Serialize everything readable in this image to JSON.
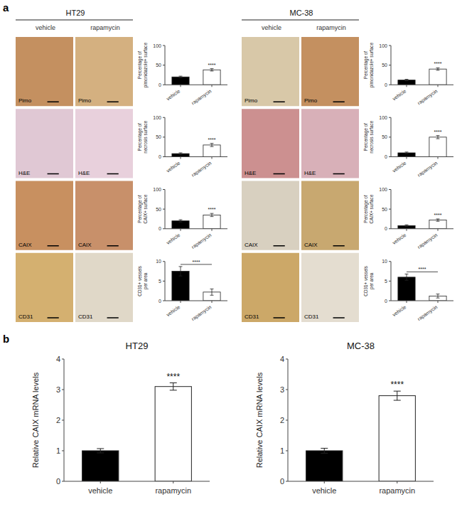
{
  "panel_a": {
    "label": "a",
    "groups": [
      {
        "title": "HT29",
        "conditions": [
          "vehicle",
          "rapamycin"
        ],
        "rows": [
          {
            "label": "Pimo",
            "image_colors": [
              "#c49060",
              "#d4b080"
            ]
          },
          {
            "label": "H&E",
            "image_colors": [
              "#e0c8d4",
              "#e8d0dc"
            ]
          },
          {
            "label": "CAIX",
            "image_colors": [
              "#c89060",
              "#c8906a"
            ]
          },
          {
            "label": "CD31",
            "image_colors": [
              "#d4b070",
              "#e0d8c8"
            ]
          }
        ]
      },
      {
        "title": "MC-38",
        "conditions": [
          "vehicle",
          "rapamycin"
        ],
        "rows": [
          {
            "label": "Pimo",
            "image_colors": [
              "#d8c8a8",
              "#c49060"
            ]
          },
          {
            "label": "H&E",
            "image_colors": [
              "#cc9090",
              "#d8b0b8"
            ]
          },
          {
            "label": "CAIX",
            "image_colors": [
              "#d8d0c0",
              "#c8a870"
            ]
          },
          {
            "label": "CD31",
            "image_colors": [
              "#cca868",
              "#e4ddd0"
            ]
          }
        ]
      }
    ]
  },
  "panel_b": {
    "label": "b"
  },
  "chart_data": [
    {
      "type": "bar",
      "categories": [
        "vehicle",
        "rapamycin"
      ],
      "values": [
        20,
        38
      ],
      "errors": [
        2,
        3
      ],
      "colors": [
        "black",
        "white"
      ],
      "ylabel": "Percentage of\npimonidazole+ surface",
      "ylim": [
        0,
        100
      ],
      "yticks": [
        0,
        50,
        100
      ],
      "annotations": [
        {
          "text": "****",
          "categories": [
            "rapamycin"
          ]
        }
      ]
    },
    {
      "type": "bar",
      "categories": [
        "vehicle",
        "rapamycin"
      ],
      "values": [
        8,
        30
      ],
      "errors": [
        2,
        4
      ],
      "colors": [
        "black",
        "white"
      ],
      "ylabel": "Percentage of\nnecrosis surface",
      "ylim": [
        0,
        100
      ],
      "yticks": [
        0,
        50,
        100
      ],
      "annotations": [
        {
          "text": "****",
          "categories": [
            "rapamycin"
          ]
        }
      ]
    },
    {
      "type": "bar",
      "categories": [
        "vehicle",
        "rapamycin"
      ],
      "values": [
        20,
        35
      ],
      "errors": [
        3,
        4
      ],
      "colors": [
        "black",
        "white"
      ],
      "ylabel": "Percentage of\nCAIX+ surface",
      "ylim": [
        0,
        100
      ],
      "yticks": [
        0,
        50,
        100
      ],
      "annotations": [
        {
          "text": "****",
          "categories": [
            "rapamycin"
          ]
        }
      ]
    },
    {
      "type": "bar",
      "categories": [
        "vehicle",
        "rapamycin"
      ],
      "values": [
        7.5,
        2.2
      ],
      "errors": [
        1.2,
        0.8
      ],
      "colors": [
        "black",
        "white"
      ],
      "ylabel": "CD31+ vessels\nper area",
      "ylim": [
        0,
        10
      ],
      "yticks": [
        0,
        5,
        10
      ],
      "annotations": [
        {
          "text": "****",
          "categories": [
            "vehicle",
            "rapamycin"
          ]
        }
      ]
    },
    {
      "type": "bar",
      "categories": [
        "vehicle",
        "rapamycin"
      ],
      "values": [
        12,
        40
      ],
      "errors": [
        2,
        3
      ],
      "colors": [
        "black",
        "white"
      ],
      "ylabel": "Percentage of\npimonidazole+ surface",
      "ylim": [
        0,
        100
      ],
      "yticks": [
        0,
        50,
        100
      ],
      "annotations": [
        {
          "text": "****",
          "categories": [
            "rapamycin"
          ]
        }
      ]
    },
    {
      "type": "bar",
      "categories": [
        "vehicle",
        "rapamycin"
      ],
      "values": [
        10,
        50
      ],
      "errors": [
        2,
        4
      ],
      "colors": [
        "black",
        "white"
      ],
      "ylabel": "Percentage of\nnecrosis surface",
      "ylim": [
        0,
        100
      ],
      "yticks": [
        0,
        50,
        100
      ],
      "annotations": [
        {
          "text": "****",
          "categories": [
            "rapamycin"
          ]
        }
      ]
    },
    {
      "type": "bar",
      "categories": [
        "vehicle",
        "rapamycin"
      ],
      "values": [
        8,
        22
      ],
      "errors": [
        2,
        3
      ],
      "colors": [
        "black",
        "white"
      ],
      "ylabel": "Percentage of\nCAIX+ surface",
      "ylim": [
        0,
        100
      ],
      "yticks": [
        0,
        50,
        100
      ],
      "annotations": [
        {
          "text": "****",
          "categories": [
            "rapamycin"
          ]
        }
      ]
    },
    {
      "type": "bar",
      "categories": [
        "vehicle",
        "rapamycin"
      ],
      "values": [
        6.0,
        1.2
      ],
      "errors": [
        0.8,
        0.5
      ],
      "colors": [
        "black",
        "white"
      ],
      "ylabel": "CD31+ vessels\nper area",
      "ylim": [
        0,
        10
      ],
      "yticks": [
        0,
        5,
        10
      ],
      "annotations": [
        {
          "text": "****",
          "categories": [
            "vehicle",
            "rapamycin"
          ]
        }
      ]
    },
    {
      "type": "bar",
      "title": "HT29",
      "categories": [
        "vehicle",
        "rapamycin"
      ],
      "values": [
        1.0,
        3.1
      ],
      "errors": [
        0.07,
        0.12
      ],
      "colors": [
        "black",
        "white"
      ],
      "ylabel": "Relative CAIX mRNA levels",
      "ylim": [
        0,
        4
      ],
      "yticks": [
        0,
        1,
        2,
        3,
        4
      ],
      "annotations": [
        {
          "text": "****",
          "categories": [
            "rapamycin"
          ]
        }
      ]
    },
    {
      "type": "bar",
      "title": "MC-38",
      "categories": [
        "vehicle",
        "rapamycin"
      ],
      "values": [
        1.0,
        2.8
      ],
      "errors": [
        0.08,
        0.15
      ],
      "colors": [
        "black",
        "white"
      ],
      "ylabel": "Relative CAIX mRNA levels",
      "ylim": [
        0,
        4
      ],
      "yticks": [
        0,
        1,
        2,
        3,
        4
      ],
      "annotations": [
        {
          "text": "****",
          "categories": [
            "rapamycin"
          ]
        }
      ]
    }
  ]
}
